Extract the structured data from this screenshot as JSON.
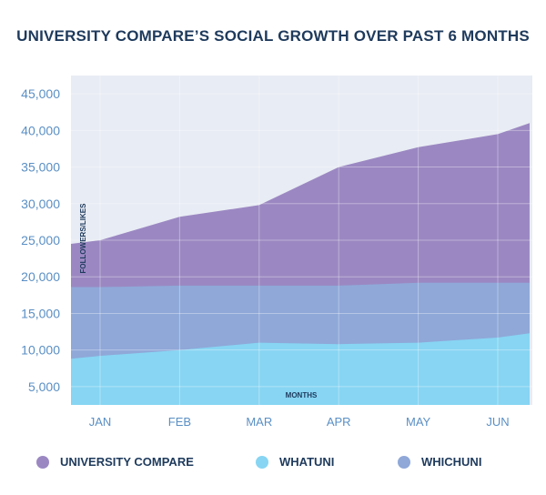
{
  "chart_data": {
    "type": "area",
    "stacked": true,
    "title": "UNIVERSITY COMPARE’S SOCIAL GROWTH OVER PAST 6 MONTHS",
    "xlabel": "MONTHS",
    "ylabel": "FOLLOWERS/LIKES",
    "categories": [
      "JAN",
      "FEB",
      "MAR",
      "APR",
      "MAY",
      "JUN"
    ],
    "x": [
      -0.4,
      0,
      1,
      2,
      3,
      4,
      5,
      5.4
    ],
    "y_ticks": [
      "5,000",
      "10,000",
      "15,000",
      "20,000",
      "25,000",
      "30,000",
      "35,000",
      "40,000",
      "45,000"
    ],
    "ylim": [
      2500,
      47500
    ],
    "grid": true,
    "legend_position": "bottom",
    "series": [
      {
        "name": "WHATUNI",
        "color": "#87d5f3",
        "cumulative": [
          8800,
          9200,
          10000,
          11000,
          10800,
          11000,
          11700,
          12300
        ]
      },
      {
        "name": "WHICHUNI",
        "color": "#8fa8d8",
        "cumulative": [
          18600,
          18600,
          18800,
          18800,
          18800,
          19200,
          19200,
          19200
        ]
      },
      {
        "name": "UNIVERSITY COMPARE",
        "color": "#9b88c2",
        "cumulative": [
          24500,
          25000,
          28200,
          29800,
          35000,
          37700,
          39500,
          41000
        ]
      }
    ]
  },
  "legend": [
    {
      "label": "UNIVERSITY COMPARE",
      "color": "#9b88c2"
    },
    {
      "label": "WHATUNI",
      "color": "#87d5f3"
    },
    {
      "label": "WHICHUNI",
      "color": "#8fa8d8"
    }
  ]
}
